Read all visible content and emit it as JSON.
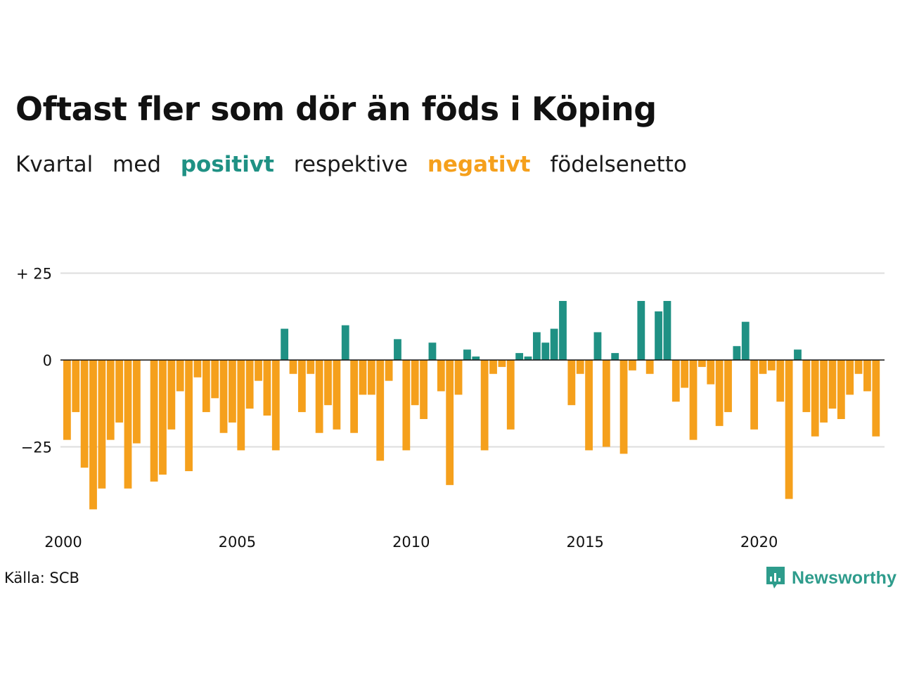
{
  "title": "Oftast fler som dör än föds i Köping",
  "subtitle": {
    "word1": "Kvartal",
    "word2": "med",
    "positive": "positivt",
    "word3": "respektive",
    "negative": "negativt",
    "word4": "födelsenetto"
  },
  "source": "Källa: SCB",
  "brand": "Newsworthy",
  "colors": {
    "positive": "#1f9184",
    "negative": "#f5a01c",
    "grid": "#dddddd",
    "axis": "#111111",
    "brand": "#2e9c8c"
  },
  "icons": {
    "logo": "newsworthy-chart-bubble-icon"
  },
  "chart_data": {
    "type": "bar",
    "title": "",
    "xlabel": "",
    "ylabel": "",
    "ylim": [
      -45,
      30
    ],
    "yticks": [
      25,
      0,
      -25
    ],
    "ytick_labels": [
      "+ 25",
      "0",
      "−25"
    ],
    "xticks": [
      2000,
      2005,
      2010,
      2015,
      2020
    ],
    "xtick_labels": [
      "2000",
      "2005",
      "2010",
      "2015",
      "2020"
    ],
    "grid": true,
    "start": "2000 Q1",
    "values": [
      -23,
      -15,
      -31,
      -43,
      -37,
      -23,
      -18,
      -37,
      -24,
      0,
      -35,
      -33,
      -20,
      -9,
      -32,
      -5,
      -15,
      -11,
      -21,
      -18,
      -26,
      -14,
      -6,
      -16,
      -26,
      9,
      -4,
      -15,
      -4,
      -21,
      -13,
      -20,
      10,
      -21,
      -10,
      -10,
      -29,
      -6,
      6,
      -26,
      -13,
      -17,
      5,
      -9,
      -36,
      -10,
      3,
      1,
      -26,
      -4,
      -2,
      -20,
      2,
      1,
      8,
      5,
      9,
      17,
      -13,
      -4,
      -26,
      8,
      -25,
      2,
      -27,
      -3,
      17,
      -4,
      14,
      17,
      -12,
      -8,
      -23,
      -2,
      -7,
      -19,
      -15,
      4,
      11,
      -20,
      -4,
      -3,
      -12,
      -40,
      3,
      -15,
      -22,
      -18,
      -14,
      -17,
      -10,
      -4,
      -9,
      -22
    ]
  }
}
